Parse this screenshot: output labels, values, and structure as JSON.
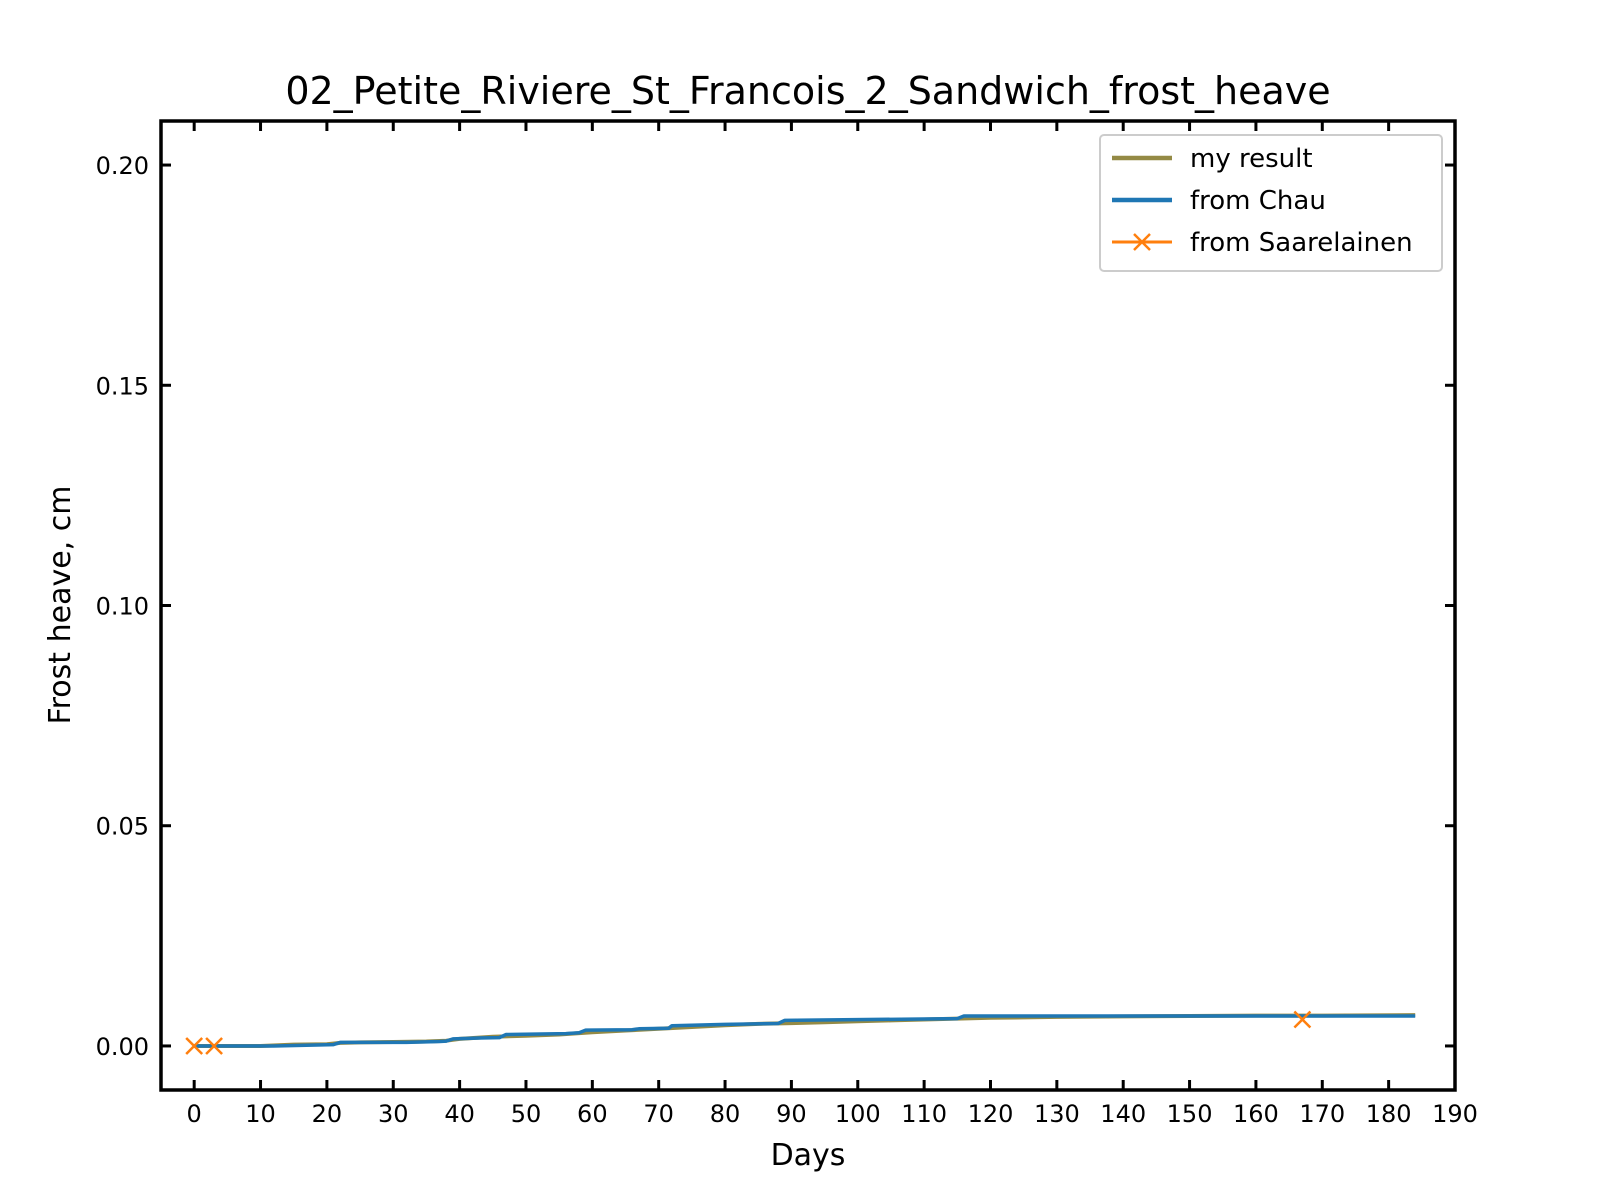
{
  "chart_data": {
    "type": "line",
    "title": "02_Petite_Riviere_St_Francois_2_Sandwich_frost_heave",
    "xlabel": "Days",
    "ylabel": "Frost heave, cm",
    "xlim": [
      -5,
      190
    ],
    "ylim": [
      -0.01,
      0.21
    ],
    "xticks": [
      0,
      10,
      20,
      30,
      40,
      50,
      60,
      70,
      80,
      90,
      100,
      110,
      120,
      130,
      140,
      150,
      160,
      170,
      180,
      190
    ],
    "yticks": [
      0.0,
      0.05,
      0.1,
      0.15,
      0.2
    ],
    "ytick_labels": [
      "0.00",
      "0.05",
      "0.10",
      "0.15",
      "0.20"
    ],
    "grid": false,
    "legend_position": "top-right",
    "series": [
      {
        "name": "my result",
        "color": "#948a45",
        "marker": "none",
        "x": [
          0,
          5,
          10,
          15,
          20,
          22,
          25,
          30,
          35,
          38,
          40,
          45,
          50,
          55,
          60,
          65,
          70,
          75,
          80,
          85,
          90,
          95,
          100,
          105,
          110,
          115,
          120,
          130,
          140,
          150,
          160,
          170,
          184
        ],
        "y": [
          0.0,
          0.0,
          0.0,
          0.0003,
          0.0004,
          0.0007,
          0.0008,
          0.0009,
          0.001,
          0.0012,
          0.0016,
          0.0021,
          0.0023,
          0.0026,
          0.0031,
          0.0035,
          0.0039,
          0.0043,
          0.0047,
          0.005,
          0.0052,
          0.0054,
          0.0056,
          0.0058,
          0.006,
          0.0062,
          0.0064,
          0.0066,
          0.0067,
          0.0068,
          0.0069,
          0.0069,
          0.007
        ]
      },
      {
        "name": "from Chau",
        "color": "#1f77b4",
        "marker": "none",
        "x": [
          0,
          12,
          21,
          22,
          32,
          37,
          38,
          39,
          43,
          46,
          47,
          56,
          58,
          59,
          66,
          67,
          71.5,
          72,
          80,
          88,
          89,
          115,
          116,
          184
        ],
        "y": [
          0.0,
          0.0,
          0.0003,
          0.0008,
          0.0008,
          0.001,
          0.0011,
          0.0016,
          0.0018,
          0.0019,
          0.0026,
          0.0028,
          0.003,
          0.0036,
          0.0037,
          0.0039,
          0.004,
          0.0046,
          0.0049,
          0.0051,
          0.0058,
          0.0062,
          0.0068,
          0.0068
        ]
      },
      {
        "name": "from Saarelainen",
        "color": "#ff7f0e",
        "marker": "x",
        "x": [
          0,
          3,
          167
        ],
        "y": [
          0.0,
          0.0,
          0.006
        ]
      }
    ]
  }
}
